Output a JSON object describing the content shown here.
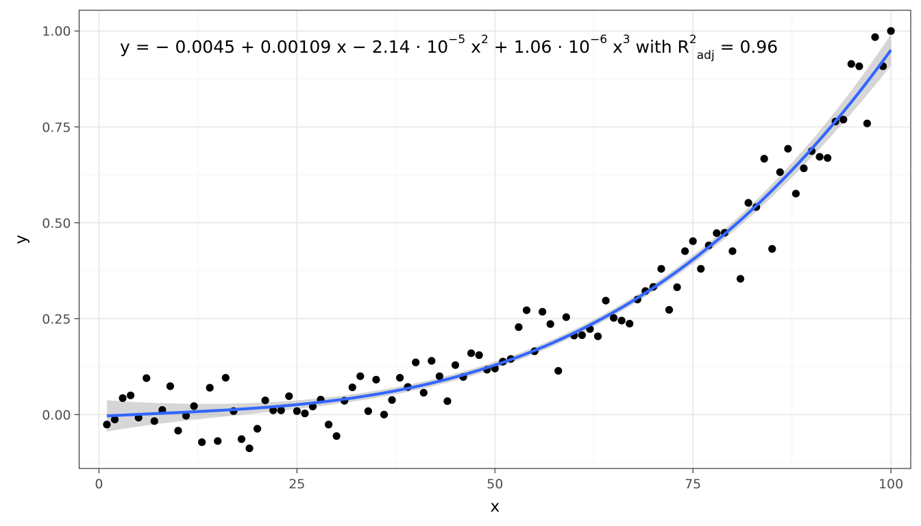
{
  "chart_data": {
    "type": "scatter",
    "title": "",
    "xlabel": "x",
    "ylabel": "y",
    "xlim": [
      -2.5,
      102.5
    ],
    "ylim": [
      -0.1405,
      1.054
    ],
    "x_ticks": [
      0,
      25,
      50,
      75,
      100
    ],
    "x_tick_labels": [
      "0",
      "25",
      "50",
      "75",
      "100"
    ],
    "y_ticks": [
      0,
      0.25,
      0.5,
      0.75,
      1.0
    ],
    "y_tick_labels": [
      "0.00",
      "0.25",
      "0.50",
      "0.75",
      "1.00"
    ],
    "grid": true,
    "legend": "none",
    "annotation": {
      "parts": [
        {
          "text": "y = − 0.0045 + 0.00109 x − 2.14 · 10",
          "style": "normal"
        },
        {
          "text": "−5",
          "style": "super"
        },
        {
          "text": " x",
          "style": "normal"
        },
        {
          "text": "2",
          "style": "super"
        },
        {
          "text": " + 1.06 · 10",
          "style": "normal"
        },
        {
          "text": "−6",
          "style": "super"
        },
        {
          "text": " x",
          "style": "normal"
        },
        {
          "text": "3",
          "style": "super"
        },
        {
          "text": "  with  R",
          "style": "normal"
        },
        {
          "text": "2",
          "style": "super"
        },
        {
          "text": "adj",
          "style": "sub"
        },
        {
          "text": " = 0.96",
          "style": "normal"
        }
      ]
    },
    "colors": {
      "points": "#000000",
      "fit_line": "#3366FF",
      "confidence_band": "#999999",
      "panel_border": "#333333",
      "grid_major": "#ebebeb",
      "grid_minor": "#f5f5f5"
    },
    "fit": {
      "model": "cubic",
      "coefficients": [
        -0.0045,
        0.00109,
        -2.14e-05,
        1.06e-06
      ],
      "x_range": [
        1,
        100
      ]
    },
    "series": [
      {
        "x": [
          1,
          2,
          3,
          4,
          5,
          6,
          7,
          8,
          9,
          10,
          11,
          12,
          13,
          14,
          15,
          16,
          17,
          18,
          19,
          20,
          21,
          22,
          23,
          24,
          25,
          26,
          27,
          28,
          29,
          30,
          31,
          32,
          33,
          34,
          35,
          36,
          37,
          38,
          39,
          40,
          41,
          42,
          43,
          44,
          45,
          46,
          47,
          48,
          49,
          50,
          51,
          52,
          53,
          54,
          55,
          56,
          57,
          58,
          59,
          60,
          61,
          62,
          63,
          64,
          65,
          66,
          67,
          68,
          69,
          70,
          71,
          72,
          73,
          74,
          75,
          76,
          77,
          78,
          79,
          80,
          81,
          82,
          83,
          84,
          85,
          86,
          87,
          88,
          89,
          90,
          91,
          92,
          93,
          94,
          95,
          96,
          97,
          98,
          99,
          100
        ],
        "y": [
          -0.026,
          -0.013,
          0.043,
          0.05,
          -0.008,
          0.095,
          -0.017,
          0.012,
          0.074,
          -0.042,
          -0.003,
          0.022,
          -0.072,
          0.07,
          -0.069,
          0.096,
          0.009,
          -0.064,
          -0.088,
          -0.037,
          0.037,
          0.011,
          0.011,
          0.048,
          0.009,
          0.003,
          0.021,
          0.039,
          -0.026,
          -0.056,
          0.036,
          0.071,
          0.1,
          0.009,
          0.091,
          0.0,
          0.038,
          0.096,
          0.072,
          0.136,
          0.057,
          0.14,
          0.1,
          0.035,
          0.129,
          0.098,
          0.16,
          0.155,
          0.117,
          0.12,
          0.138,
          0.145,
          0.228,
          0.272,
          0.165,
          0.268,
          0.236,
          0.114,
          0.254,
          0.206,
          0.207,
          0.223,
          0.204,
          0.297,
          0.252,
          0.245,
          0.237,
          0.3,
          0.322,
          0.333,
          0.38,
          0.273,
          0.332,
          0.426,
          0.452,
          0.38,
          0.441,
          0.473,
          0.474,
          0.426,
          0.354,
          0.552,
          0.541,
          0.667,
          0.432,
          0.632,
          0.693,
          0.576,
          0.642,
          0.687,
          0.672,
          0.669,
          0.764,
          0.769,
          0.914,
          0.908,
          0.759,
          0.984,
          0.908,
          1.0
        ]
      }
    ]
  }
}
